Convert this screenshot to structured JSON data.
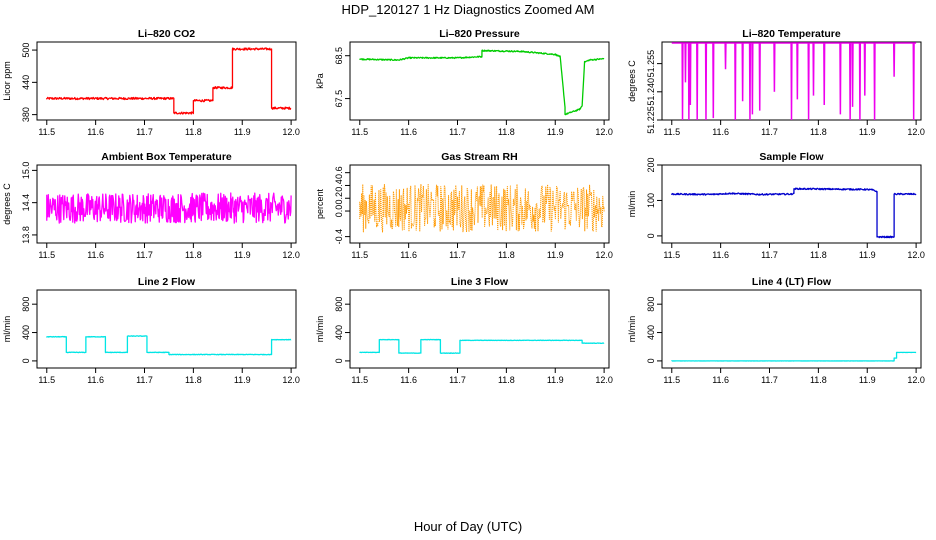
{
  "title": "HDP_120127  1 Hz Diagnostics Zoomed AM",
  "xlabel": "Hour of Day (UTC)",
  "chart_data": [
    {
      "type": "line",
      "title": "Li–820 CO2",
      "ylabel": "Licor ppm",
      "color": "#ff0000",
      "xticks": [
        "11.5",
        "11.6",
        "11.7",
        "11.8",
        "11.9",
        "12.0"
      ],
      "yticks": [
        "380",
        "440",
        "500"
      ],
      "xlim": [
        11.48,
        12.01
      ],
      "ylim": [
        370,
        515
      ],
      "x": [
        11.5,
        11.76,
        11.76,
        11.8,
        11.8,
        11.84,
        11.84,
        11.88,
        11.88,
        11.96,
        11.96,
        12.0
      ],
      "values": [
        410,
        410,
        383,
        383,
        406,
        406,
        430,
        430,
        502,
        502,
        392,
        392
      ],
      "noise": 2
    },
    {
      "type": "line",
      "title": "Li–820 Pressure",
      "ylabel": "kPa",
      "color": "#00cc00",
      "xticks": [
        "11.5",
        "11.6",
        "11.7",
        "11.8",
        "11.9",
        "12.0"
      ],
      "yticks": [
        "67.5",
        "68.5"
      ],
      "xlim": [
        11.48,
        12.01
      ],
      "ylim": [
        67.0,
        68.82
      ],
      "x": [
        11.5,
        11.58,
        11.6,
        11.66,
        11.7,
        11.75,
        11.75,
        11.83,
        11.9,
        11.91,
        11.92,
        11.92,
        11.95,
        11.955,
        11.96,
        11.97,
        12.0
      ],
      "values": [
        68.42,
        68.4,
        68.45,
        68.45,
        68.45,
        68.48,
        68.62,
        68.6,
        68.53,
        68.48,
        67.3,
        67.13,
        67.25,
        67.33,
        68.35,
        68.4,
        68.43
      ],
      "noise": 0.015
    },
    {
      "type": "line",
      "title": "Li–820 Temperature",
      "ylabel": "degrees C",
      "color": "#ee00ee",
      "xticks": [
        "11.5",
        "11.6",
        "11.7",
        "11.8",
        "11.9",
        "12.0"
      ],
      "yticks": [
        "51.225",
        "51.240",
        "51.255"
      ],
      "xlim": [
        11.48,
        12.01
      ],
      "ylim": [
        51.225,
        51.2665
      ],
      "baseline": 51.266,
      "spikes": [
        [
          11.522,
          51.225
        ],
        [
          11.528,
          51.245
        ],
        [
          11.535,
          51.225
        ],
        [
          11.538,
          51.233
        ],
        [
          11.552,
          51.225
        ],
        [
          11.57,
          51.225
        ],
        [
          11.585,
          51.226
        ],
        [
          11.61,
          51.252
        ],
        [
          11.63,
          51.225
        ],
        [
          11.645,
          51.235
        ],
        [
          11.66,
          51.225
        ],
        [
          11.665,
          51.228
        ],
        [
          11.68,
          51.23
        ],
        [
          11.71,
          51.24
        ],
        [
          11.745,
          51.225
        ],
        [
          11.757,
          51.236
        ],
        [
          11.78,
          51.225
        ],
        [
          11.79,
          51.238
        ],
        [
          11.812,
          51.233
        ],
        [
          11.845,
          51.228
        ],
        [
          11.865,
          51.225
        ],
        [
          11.87,
          51.232
        ],
        [
          11.885,
          51.225
        ],
        [
          11.895,
          51.238
        ],
        [
          11.915,
          51.225
        ],
        [
          11.955,
          51.248
        ],
        [
          11.995,
          51.225
        ]
      ]
    },
    {
      "type": "line",
      "title": "Ambient Box Temperature",
      "ylabel": "degrees C",
      "color": "#ff00ff",
      "xticks": [
        "11.5",
        "11.6",
        "11.7",
        "11.8",
        "11.9",
        "12.0"
      ],
      "yticks": [
        "13.8",
        "14.4",
        "15.0"
      ],
      "xlim": [
        11.48,
        12.01
      ],
      "ylim": [
        13.65,
        15.1
      ],
      "x": [
        11.5,
        12.0
      ],
      "values": [
        14.3,
        14.3
      ],
      "noise": 0.28
    },
    {
      "type": "line",
      "title": "Gas Stream RH",
      "ylabel": "percent",
      "color": "#ff9900",
      "xticks": [
        "11.5",
        "11.6",
        "11.7",
        "11.8",
        "11.9",
        "12.0"
      ],
      "yticks": [
        "-0.4",
        "0.0",
        "0.2",
        "0.4",
        "0.6"
      ],
      "xlim": [
        11.48,
        12.01
      ],
      "ylim": [
        -0.5,
        0.72
      ],
      "x": [
        11.5,
        12.0
      ],
      "values": [
        0.05,
        0.05
      ],
      "noise": 0.38,
      "dotted": true
    },
    {
      "type": "line",
      "title": "Sample Flow",
      "ylabel": "ml/min",
      "color": "#0000cc",
      "xticks": [
        "11.5",
        "11.6",
        "11.7",
        "11.8",
        "11.9",
        "12.0"
      ],
      "yticks": [
        "0",
        "100",
        "200"
      ],
      "xlim": [
        11.48,
        12.01
      ],
      "ylim": [
        -20,
        200
      ],
      "x": [
        11.5,
        11.58,
        11.62,
        11.68,
        11.745,
        11.75,
        11.75,
        11.9,
        11.91,
        11.92,
        11.92,
        11.955,
        11.955,
        12.0
      ],
      "values": [
        118,
        117,
        120,
        117,
        118,
        120,
        133,
        131,
        130,
        125,
        -3,
        -3,
        118,
        118
      ],
      "noise": 2
    },
    {
      "type": "line",
      "title": "Line 2 Flow",
      "ylabel": "ml/min",
      "color": "#00e5e5",
      "xticks": [
        "11.5",
        "11.6",
        "11.7",
        "11.8",
        "11.9",
        "12.0"
      ],
      "yticks": [
        "0",
        "400",
        "800"
      ],
      "xlim": [
        11.48,
        12.01
      ],
      "ylim": [
        -100,
        1000
      ],
      "x": [
        11.5,
        11.54,
        11.54,
        11.58,
        11.58,
        11.62,
        11.62,
        11.665,
        11.665,
        11.705,
        11.705,
        11.75,
        11.75,
        11.96,
        11.96,
        12.0
      ],
      "values": [
        340,
        340,
        120,
        120,
        340,
        340,
        120,
        120,
        350,
        350,
        120,
        120,
        90,
        90,
        300,
        300
      ],
      "noise": 4
    },
    {
      "type": "line",
      "title": "Line 3 Flow",
      "ylabel": "ml/min",
      "color": "#00e5e5",
      "xticks": [
        "11.5",
        "11.6",
        "11.7",
        "11.8",
        "11.9",
        "12.0"
      ],
      "yticks": [
        "0",
        "400",
        "800"
      ],
      "xlim": [
        11.48,
        12.01
      ],
      "ylim": [
        -100,
        1000
      ],
      "x": [
        11.5,
        11.54,
        11.54,
        11.58,
        11.58,
        11.625,
        11.625,
        11.665,
        11.665,
        11.705,
        11.705,
        11.955,
        11.955,
        12.0
      ],
      "values": [
        120,
        120,
        300,
        300,
        110,
        110,
        300,
        300,
        110,
        110,
        290,
        290,
        250,
        250
      ],
      "noise": 3
    },
    {
      "type": "line",
      "title": "Line 4 (LT) Flow",
      "ylabel": "ml/min",
      "color": "#00e5e5",
      "xticks": [
        "11.5",
        "11.6",
        "11.7",
        "11.8",
        "11.9",
        "12.0"
      ],
      "yticks": [
        "0",
        "400",
        "800"
      ],
      "xlim": [
        11.48,
        12.01
      ],
      "ylim": [
        -100,
        1000
      ],
      "x": [
        11.5,
        11.955,
        11.955,
        11.96,
        11.96,
        12.0
      ],
      "values": [
        0,
        0,
        40,
        40,
        120,
        120
      ],
      "noise": 1
    }
  ]
}
